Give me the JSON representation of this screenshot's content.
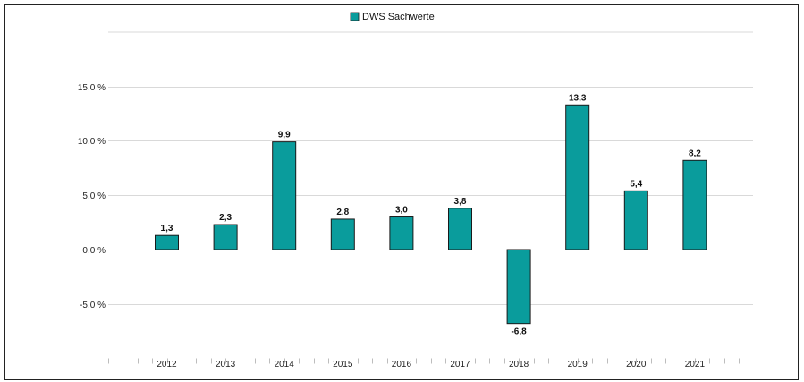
{
  "chart_data": {
    "type": "bar",
    "categories": [
      "2012",
      "2013",
      "2014",
      "2015",
      "2016",
      "2017",
      "2018",
      "2019",
      "2020",
      "2021"
    ],
    "series": [
      {
        "name": "DWS Sachwerte",
        "values": [
          1.3,
          2.3,
          9.9,
          2.8,
          3.0,
          3.8,
          -6.8,
          13.3,
          5.4,
          8.2
        ],
        "data_labels": [
          "1,3",
          "2,3",
          "9,9",
          "2,8",
          "3,0",
          "3,8",
          "-6,8",
          "13,3",
          "5,4",
          "8,2"
        ],
        "color": "#0a9c9c"
      }
    ],
    "y_ticks": [
      -5,
      0,
      5,
      10,
      15
    ],
    "y_tick_labels": [
      "-5,0 %",
      "0,0 %",
      "5,0 %",
      "10,0 %",
      "15,0 %"
    ],
    "ylim": [
      -9.5,
      20
    ],
    "grid": true,
    "legend_position": "top-center",
    "title": "",
    "xlabel": "",
    "ylabel": ""
  },
  "colors": {
    "bar_fill": "#0a9c9c",
    "bar_stroke": "#1a1a1a",
    "grid": "#d9d9d9",
    "axis": "#bdbdbd"
  }
}
